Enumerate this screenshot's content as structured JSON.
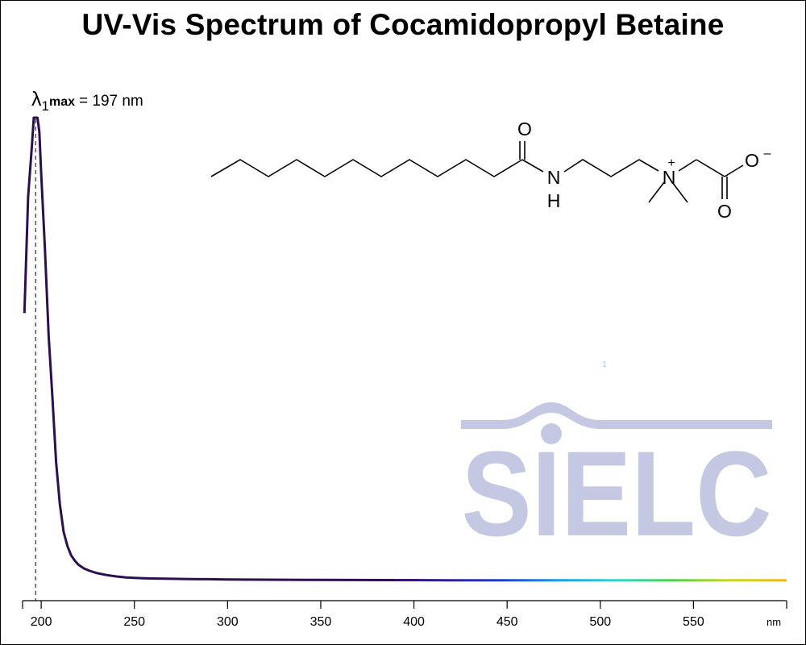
{
  "chart_data": {
    "type": "line",
    "title": "UV-Vis Spectrum of Cocamidopropyl Betaine",
    "xlabel": "nm",
    "ylabel": "",
    "xlim": [
      190,
      600
    ],
    "ylim": [
      0,
      1
    ],
    "x_ticks": [
      "200",
      "250",
      "300",
      "350",
      "400",
      "450",
      "500",
      "550"
    ],
    "grid": false,
    "legend": "none",
    "series": [
      {
        "x": [
          191,
          193,
          195,
          196,
          197,
          198,
          199,
          200,
          202,
          204,
          206,
          208,
          210,
          212,
          214,
          216,
          218,
          220,
          223,
          226,
          230,
          235,
          240,
          245,
          250,
          255,
          260,
          270,
          280,
          290,
          300,
          320,
          350,
          390,
          420,
          450,
          500,
          550,
          600
        ],
        "values": [
          0.58,
          0.83,
          0.94,
          1.0,
          1.0,
          1.0,
          0.97,
          0.88,
          0.72,
          0.53,
          0.4,
          0.26,
          0.17,
          0.11,
          0.08,
          0.06,
          0.048,
          0.039,
          0.031,
          0.026,
          0.021,
          0.017,
          0.014,
          0.012,
          0.011,
          0.01,
          0.0095,
          0.0088,
          0.0083,
          0.0079,
          0.0075,
          0.0069,
          0.0064,
          0.006,
          0.0058,
          0.0057,
          0.0056,
          0.0056,
          0.0056
        ]
      }
    ],
    "annotations": [
      {
        "lambda": "λ",
        "subscript": "1",
        "bold": "max",
        "text": "= 197 nm",
        "x": 197
      }
    ]
  },
  "molecule": {
    "atoms": [
      "O",
      "N",
      "H",
      "N",
      "+",
      "O",
      "–",
      "O"
    ]
  },
  "logo": {
    "text": "SIELC",
    "mark": "1"
  },
  "colors": {
    "curve": "#2b0f4e",
    "logo": "#c5c8e3",
    "spectrum": [
      "#3a0f6a",
      "#2d1f9a",
      "#1e3fd0",
      "#19a0f0",
      "#2ed6c8",
      "#4fd04a",
      "#c9d81e",
      "#f0b81a"
    ]
  }
}
